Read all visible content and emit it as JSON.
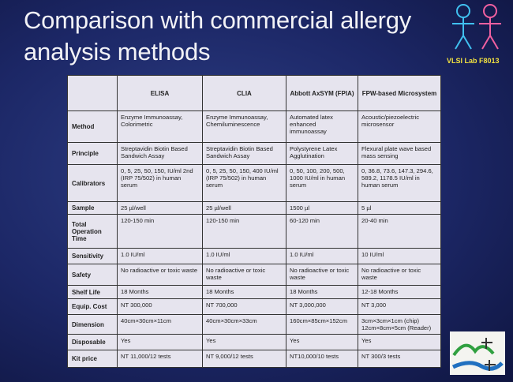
{
  "header": {
    "title": "Comparison with commercial allergy analysis methods",
    "lab": "VLSI Lab F8013"
  },
  "table": {
    "columns": [
      "ELISA",
      "CLIA",
      "Abbott AxSYM (FPIA)",
      "FPW-based Microsystem"
    ],
    "rows": [
      [
        "Method",
        "Enzyme Immunoassay, Colorimetric",
        "Enzyme Immunoassay, Chemiluminescence",
        "Automated latex enhanced immunoassay",
        "Acoustic/piezoelectric microsensor"
      ],
      [
        "Principle",
        "Streptavidin Biotin Based Sandwich Assay",
        "Streptavidin Biotin Based Sandwich Assay",
        "Polystyrene Latex Agglutination",
        "Flexural plate wave based mass sensing"
      ],
      [
        "Calibrators",
        "0, 5, 25, 50, 150, IU/ml 2nd (IRP 75/502) in human serum",
        "0, 5, 25, 50, 150, 400 IU/ml (IRP 75/502) in human serum",
        "0, 50, 100, 200, 500, 1000 IU/ml in human serum",
        "0, 36.8, 73.6, 147.3, 294.6, 589.2, 1178.5 IU/ml in human serum"
      ],
      [
        "Sample",
        "25 µl/well",
        "25 µl/well",
        "1500 µl",
        "5 µl"
      ],
      [
        "Total Operation Time",
        "120-150 min",
        "120-150 min",
        "60-120 min",
        "20-40 min"
      ],
      [
        "Sensitivity",
        "1.0 IU/ml",
        "1.0 IU/ml",
        "1.0 IU/ml",
        "10 IU/ml"
      ],
      [
        "Safety",
        "No radioactive or toxic waste",
        "No radioactive or toxic waste",
        "No radioactive or toxic waste",
        "No radioactive or toxic waste"
      ],
      [
        "Shelf Life",
        "18 Months",
        "18 Months",
        "18 Months",
        "12-18 Months"
      ],
      [
        "Equip. Cost",
        "NT 300,000",
        "NT 700,000",
        "NT 3,000,000",
        "NT 3,000"
      ],
      [
        "Dimension",
        "40cm×30cm×11cm",
        "40cm×30cm×33cm",
        "160cm×85cm×152cm",
        "3cm×3cm×1cm (chip) 12cm×8cm×5cm (Reader)"
      ],
      [
        "Disposable",
        "Yes",
        "Yes",
        "Yes",
        "Yes"
      ],
      [
        "Kit price",
        "NT 11,000/12 tests",
        "NT 9,000/12 tests",
        "NT10,000/10 tests",
        "NT 300/3 tests"
      ]
    ]
  }
}
